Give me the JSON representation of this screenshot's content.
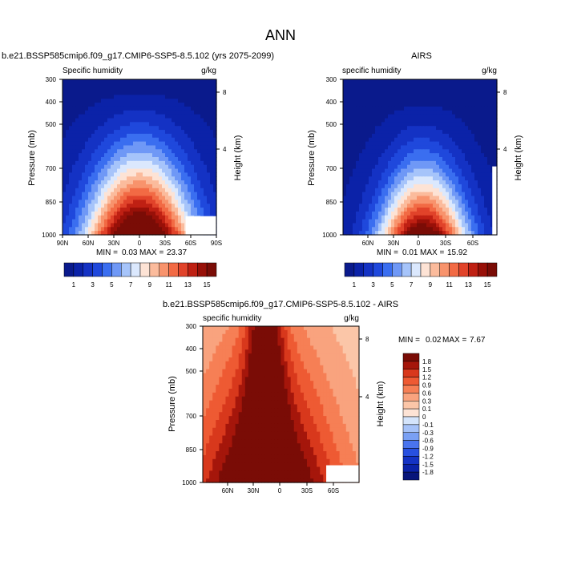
{
  "figure_title": "ANN",
  "chart_data": [
    {
      "type": "contour",
      "title": "b.e21.BSSP585cmip6.f09_g17.CMIP6-SSP5-8.5.102 (yrs 2075-2099)",
      "subtitle_left": "Specific humidity",
      "units": "g/kg",
      "ylabel": "Pressure (mb)",
      "ylabel_right": "Height (km)",
      "x_ticks": [
        "90N",
        "60N",
        "30N",
        "0",
        "30S",
        "60S",
        "90S"
      ],
      "y_ticks": [
        "300",
        "400",
        "500",
        "700",
        "850",
        "1000"
      ],
      "height_ticks": [
        "8",
        "4"
      ],
      "stats": {
        "min_label": "MIN =",
        "min": "0.03",
        "max_label": "MAX =",
        "max": "23.37"
      },
      "peak_value": 23.37,
      "colorbar_levels": [
        "1",
        "3",
        "5",
        "7",
        "9",
        "11",
        "13",
        "15"
      ]
    },
    {
      "type": "contour",
      "title": "AIRS",
      "subtitle_left": "specific humidity",
      "units": "g/kg",
      "ylabel": "Pressure (mb)",
      "ylabel_right": "Height (km)",
      "x_ticks": [
        "60N",
        "30N",
        "0",
        "30S",
        "60S"
      ],
      "y_ticks": [
        "300",
        "400",
        "500",
        "700",
        "850",
        "1000"
      ],
      "height_ticks": [
        "8",
        "4"
      ],
      "stats": {
        "min_label": "MIN =",
        "min": "0.01",
        "max_label": "MAX =",
        "max": "15.92"
      },
      "peak_value": 15.92,
      "colorbar_levels": [
        "1",
        "3",
        "5",
        "7",
        "9",
        "11",
        "13",
        "15"
      ]
    },
    {
      "type": "contour",
      "title": "b.e21.BSSP585cmip6.f09_g17.CMIP6-SSP5-8.5.102 - AIRS",
      "subtitle_left": "specific humidity",
      "units": "g/kg",
      "ylabel": "Pressure (mb)",
      "ylabel_right": "Height (km)",
      "x_ticks": [
        "60N",
        "30N",
        "0",
        "30S",
        "60S"
      ],
      "y_ticks": [
        "300",
        "400",
        "500",
        "700",
        "850",
        "1000"
      ],
      "height_ticks": [
        "8",
        "4"
      ],
      "stats": {
        "min_label": "MIN =",
        "min": "0.02",
        "max_label": "MAX =",
        "max": "7.67"
      },
      "peak_value": 7.67,
      "colorbar_levels": [
        "1.8",
        "1.5",
        "1.2",
        "0.9",
        "0.6",
        "0.3",
        "0.1",
        "0",
        "-0.1",
        "-0.3",
        "-0.6",
        "-0.9",
        "-1.2",
        "-1.5",
        "-1.8"
      ]
    }
  ],
  "colors": {
    "seq": [
      "#0a1a8c",
      "#0b22a8",
      "#1432c4",
      "#1f48dc",
      "#3a6ef0",
      "#6f98f6",
      "#a6c4fa",
      "#dbe8fd",
      "#fde3d5",
      "#fbbb9c",
      "#f8936c",
      "#f26a44",
      "#e1432a",
      "#bf2013",
      "#981008",
      "#7a0c06"
    ],
    "diff": [
      "#08157a",
      "#0b22a8",
      "#1432c4",
      "#2850e0",
      "#4a74ee",
      "#7aa0f4",
      "#a6c2f8",
      "#d4e4fb",
      "#fde3d5",
      "#fbc6a8",
      "#f9a37e",
      "#f67f55",
      "#ee5a33",
      "#d8381c",
      "#a5160b",
      "#7a0c06"
    ]
  }
}
